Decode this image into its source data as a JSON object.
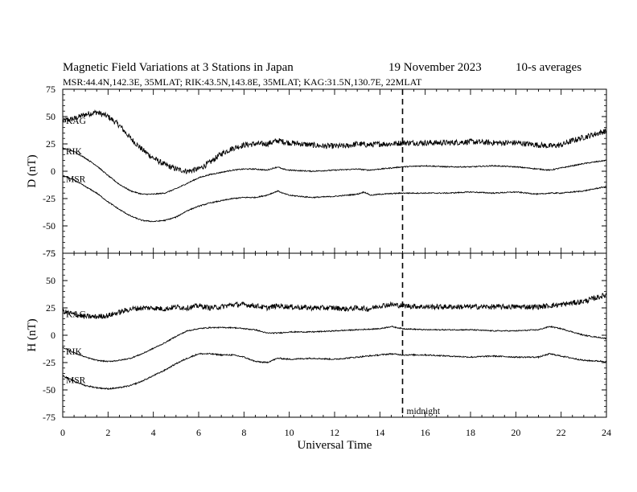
{
  "header": {
    "title": "Magnetic Field Variations at 3 Stations in Japan",
    "date": "19 November 2023",
    "averaging": "10-s averages",
    "stations": "MSR:44.4N,142.3E, 35MLAT;  RIK:43.5N,143.8E, 35MLAT;  KAG:31.5N,130.7E, 22MLAT"
  },
  "chart_data": {
    "type": "line",
    "xlabel": "Universal Time",
    "xlim": [
      0,
      24
    ],
    "xticks": [
      0,
      2,
      4,
      6,
      8,
      10,
      12,
      14,
      16,
      18,
      20,
      22,
      24
    ],
    "midnight": {
      "x": 15,
      "label": "midnight"
    },
    "panels": [
      {
        "ylabel": "D (nT)",
        "ylim": [
          -75,
          75
        ],
        "yticks": [
          75,
          50,
          25,
          0,
          -25,
          -50,
          -75
        ],
        "series": [
          {
            "name": "KAG",
            "noise": 2.6,
            "points": [
              [
                0,
                46
              ],
              [
                0.5,
                48
              ],
              [
                1,
                52
              ],
              [
                1.5,
                54
              ],
              [
                2,
                50
              ],
              [
                2.5,
                42
              ],
              [
                3,
                30
              ],
              [
                3.5,
                20
              ],
              [
                4,
                12
              ],
              [
                4.5,
                6
              ],
              [
                5,
                2
              ],
              [
                5.5,
                0
              ],
              [
                6,
                2
              ],
              [
                6.5,
                8
              ],
              [
                7,
                16
              ],
              [
                7.5,
                21
              ],
              [
                8,
                24
              ],
              [
                8.5,
                25
              ],
              [
                9,
                25
              ],
              [
                9.5,
                28
              ],
              [
                10,
                26
              ],
              [
                10.5,
                25
              ],
              [
                11,
                24
              ],
              [
                11.5,
                23
              ],
              [
                12,
                23
              ],
              [
                12.5,
                23
              ],
              [
                13,
                25
              ],
              [
                13.5,
                24
              ],
              [
                14,
                25
              ],
              [
                14.5,
                25
              ],
              [
                15,
                26
              ],
              [
                16,
                26
              ],
              [
                17,
                26
              ],
              [
                18,
                27
              ],
              [
                19,
                26
              ],
              [
                20,
                26
              ],
              [
                21,
                24
              ],
              [
                21.5,
                23
              ],
              [
                22,
                24
              ],
              [
                22.5,
                28
              ],
              [
                23,
                31
              ],
              [
                23.5,
                34
              ],
              [
                24,
                37
              ]
            ]
          },
          {
            "name": "RIK",
            "noise": 0.5,
            "points": [
              [
                0,
                21
              ],
              [
                0.5,
                18
              ],
              [
                1,
                12
              ],
              [
                1.5,
                5
              ],
              [
                2,
                -4
              ],
              [
                2.5,
                -12
              ],
              [
                3,
                -18
              ],
              [
                3.5,
                -21
              ],
              [
                4,
                -21
              ],
              [
                4.5,
                -20
              ],
              [
                5,
                -16
              ],
              [
                5.5,
                -11
              ],
              [
                6,
                -6
              ],
              [
                6.5,
                -3
              ],
              [
                7,
                -1
              ],
              [
                7.5,
                1
              ],
              [
                8,
                2
              ],
              [
                8.5,
                2
              ],
              [
                9,
                1
              ],
              [
                9.5,
                4
              ],
              [
                9.7,
                2
              ],
              [
                10,
                1
              ],
              [
                11,
                0
              ],
              [
                12,
                1
              ],
              [
                13,
                2
              ],
              [
                13.5,
                1
              ],
              [
                14,
                2
              ],
              [
                15,
                4
              ],
              [
                16,
                5
              ],
              [
                17,
                4
              ],
              [
                18,
                4
              ],
              [
                19,
                5
              ],
              [
                20,
                4
              ],
              [
                21,
                2
              ],
              [
                21.5,
                1
              ],
              [
                22,
                3
              ],
              [
                23,
                7
              ],
              [
                24,
                10
              ]
            ]
          },
          {
            "name": "MSR",
            "noise": 0.5,
            "points": [
              [
                0,
                -4
              ],
              [
                0.5,
                -8
              ],
              [
                1,
                -14
              ],
              [
                1.5,
                -20
              ],
              [
                2,
                -28
              ],
              [
                2.5,
                -35
              ],
              [
                3,
                -41
              ],
              [
                3.5,
                -45
              ],
              [
                4,
                -46
              ],
              [
                4.5,
                -45
              ],
              [
                5,
                -42
              ],
              [
                5.5,
                -36
              ],
              [
                6,
                -32
              ],
              [
                6.5,
                -29
              ],
              [
                7,
                -27
              ],
              [
                7.5,
                -25
              ],
              [
                8,
                -24
              ],
              [
                8.5,
                -24
              ],
              [
                9,
                -22
              ],
              [
                9.5,
                -18
              ],
              [
                9.7,
                -20
              ],
              [
                10,
                -22
              ],
              [
                11,
                -24
              ],
              [
                12,
                -23
              ],
              [
                13,
                -21
              ],
              [
                13.3,
                -19
              ],
              [
                13.6,
                -22
              ],
              [
                14,
                -21
              ],
              [
                15,
                -20
              ],
              [
                16,
                -20
              ],
              [
                17,
                -20
              ],
              [
                18,
                -19
              ],
              [
                19,
                -20
              ],
              [
                20,
                -19
              ],
              [
                21,
                -21
              ],
              [
                21.5,
                -20
              ],
              [
                22,
                -20
              ],
              [
                23,
                -18
              ],
              [
                24,
                -14
              ]
            ]
          }
        ]
      },
      {
        "ylabel": "H (nT)",
        "ylim": [
          -75,
          75
        ],
        "yticks": [
          75,
          50,
          25,
          0,
          -25,
          -50,
          -75
        ],
        "series": [
          {
            "name": "KAG",
            "noise": 2.4,
            "points": [
              [
                0,
                22
              ],
              [
                0.5,
                19
              ],
              [
                1,
                17
              ],
              [
                1.5,
                17
              ],
              [
                2,
                18
              ],
              [
                2.5,
                21
              ],
              [
                3,
                24
              ],
              [
                3.5,
                25
              ],
              [
                4,
                25
              ],
              [
                4.5,
                24
              ],
              [
                5,
                26
              ],
              [
                5.5,
                25
              ],
              [
                6,
                27
              ],
              [
                6.5,
                25
              ],
              [
                7,
                26
              ],
              [
                7.5,
                28
              ],
              [
                8,
                28
              ],
              [
                8.5,
                27
              ],
              [
                9,
                25
              ],
              [
                9.5,
                27
              ],
              [
                10,
                26
              ],
              [
                11,
                25
              ],
              [
                12,
                25
              ],
              [
                12.5,
                24
              ],
              [
                13,
                25
              ],
              [
                13.5,
                24
              ],
              [
                14,
                27
              ],
              [
                14.5,
                28
              ],
              [
                15,
                27
              ],
              [
                16,
                26
              ],
              [
                17,
                26
              ],
              [
                18,
                26
              ],
              [
                19,
                26
              ],
              [
                20,
                26
              ],
              [
                21,
                26
              ],
              [
                21.5,
                27
              ],
              [
                22,
                28
              ],
              [
                23,
                31
              ],
              [
                23.5,
                34
              ],
              [
                24,
                37
              ]
            ]
          },
          {
            "name": "RIK",
            "noise": 0.5,
            "points": [
              [
                0,
                -11
              ],
              [
                0.5,
                -16
              ],
              [
                1,
                -20
              ],
              [
                1.5,
                -23
              ],
              [
                2,
                -24
              ],
              [
                2.5,
                -23
              ],
              [
                3,
                -21
              ],
              [
                3.5,
                -17
              ],
              [
                4,
                -12
              ],
              [
                4.5,
                -7
              ],
              [
                5,
                -1
              ],
              [
                5.5,
                4
              ],
              [
                6,
                6
              ],
              [
                6.5,
                7
              ],
              [
                7,
                7
              ],
              [
                7.5,
                7
              ],
              [
                8,
                6
              ],
              [
                8.5,
                5
              ],
              [
                9,
                2
              ],
              [
                9.5,
                2
              ],
              [
                10,
                3
              ],
              [
                11,
                3
              ],
              [
                12,
                4
              ],
              [
                13,
                5
              ],
              [
                14,
                6
              ],
              [
                14.5,
                8
              ],
              [
                15,
                6
              ],
              [
                16,
                5
              ],
              [
                17,
                5
              ],
              [
                18,
                5
              ],
              [
                19,
                4
              ],
              [
                20,
                4
              ],
              [
                21,
                5
              ],
              [
                21.5,
                8
              ],
              [
                22,
                6
              ],
              [
                23,
                0
              ],
              [
                24,
                -3
              ]
            ]
          },
          {
            "name": "MSR",
            "noise": 0.6,
            "points": [
              [
                0,
                -37
              ],
              [
                0.5,
                -42
              ],
              [
                1,
                -46
              ],
              [
                1.5,
                -48
              ],
              [
                2,
                -49
              ],
              [
                2.5,
                -48
              ],
              [
                3,
                -46
              ],
              [
                3.5,
                -42
              ],
              [
                4,
                -37
              ],
              [
                4.5,
                -32
              ],
              [
                5,
                -26
              ],
              [
                5.5,
                -21
              ],
              [
                6,
                -17
              ],
              [
                6.5,
                -17
              ],
              [
                7,
                -18
              ],
              [
                7.5,
                -18
              ],
              [
                8,
                -20
              ],
              [
                8.5,
                -24
              ],
              [
                9,
                -25
              ],
              [
                9.5,
                -21
              ],
              [
                10,
                -22
              ],
              [
                11,
                -21
              ],
              [
                12,
                -22
              ],
              [
                13,
                -20
              ],
              [
                14,
                -18
              ],
              [
                14.5,
                -17
              ],
              [
                15,
                -18
              ],
              [
                16,
                -18
              ],
              [
                17,
                -19
              ],
              [
                18,
                -20
              ],
              [
                19,
                -19
              ],
              [
                20,
                -20
              ],
              [
                21,
                -20
              ],
              [
                21.5,
                -17
              ],
              [
                22,
                -19
              ],
              [
                23,
                -23
              ],
              [
                24,
                -24
              ]
            ]
          }
        ]
      }
    ]
  }
}
